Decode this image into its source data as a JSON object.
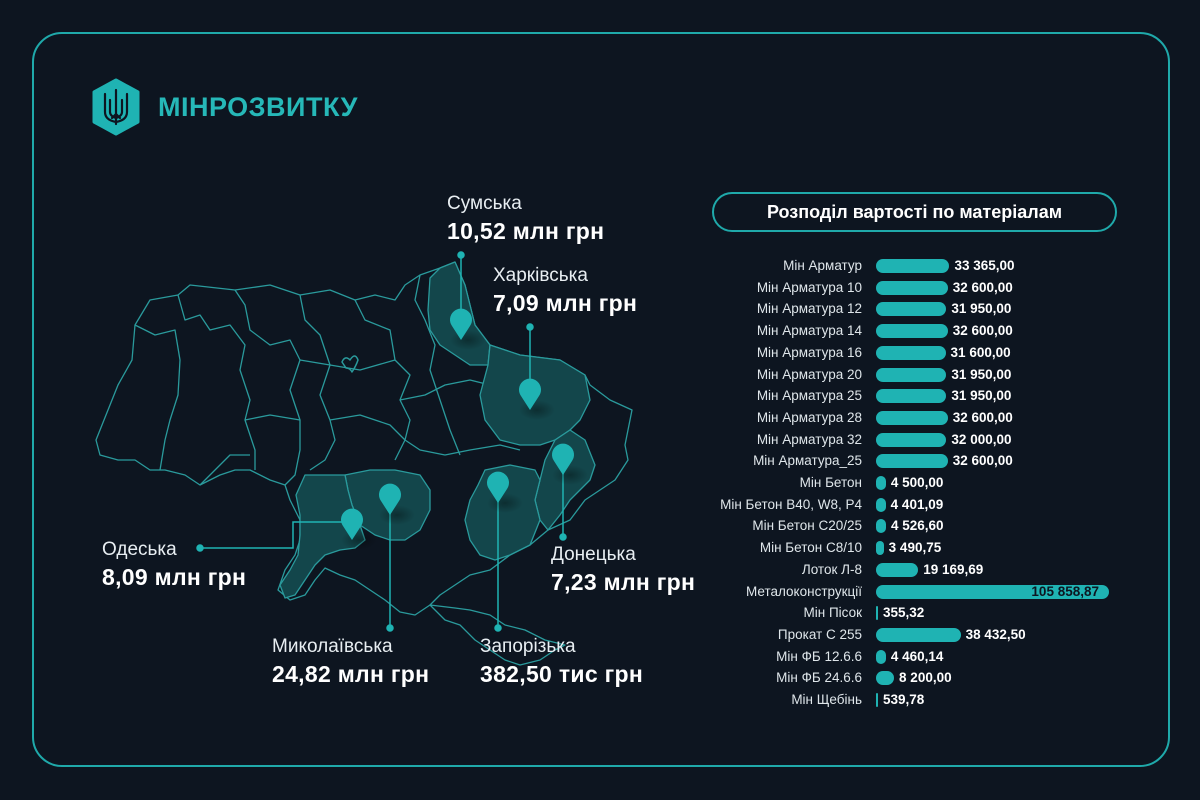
{
  "header": {
    "logo_text": "МІНРОЗВИТКУ",
    "logo_icon": "trident-emblem-icon"
  },
  "colors": {
    "background": "#0d1520",
    "accent": "#1fb3b3",
    "region_fill": "#13464b",
    "border_line": "#2a8f93",
    "text": "#ffffff"
  },
  "map": {
    "regions": [
      {
        "name": "Сумська",
        "value": "10,52 млн грн"
      },
      {
        "name": "Харківська",
        "value": "7,09 млн грн"
      },
      {
        "name": "Одеська",
        "value": "8,09 млн грн"
      },
      {
        "name": "Донецька",
        "value": "7,23 млн грн"
      },
      {
        "name": "Миколаївська",
        "value": "24,82 млн грн"
      },
      {
        "name": "Запорізька",
        "value": "382,50 тис грн"
      }
    ]
  },
  "chart_data": {
    "type": "bar",
    "orientation": "horizontal",
    "title": "Розподіл вартості по матеріалам",
    "xlabel": "",
    "ylabel": "",
    "grid": false,
    "categories": [
      "Мін Арматур",
      "Мін Арматура 10",
      "Мін Арматура 12",
      "Мін Арматура 14",
      "Мін Арматура 16",
      "Мін Арматура 20",
      "Мін Арматура 25",
      "Мін Арматура 28",
      "Мін Арматура 32",
      "Мін Арматура_25",
      "Мін Бетон",
      "Мін Бетон В40, W8, Р4",
      "Мін Бетон С20/25",
      "Мін Бетон С8/10",
      "Лоток Л-8",
      "Металоконструкції",
      "Мін Пісок",
      "Прокат С 255",
      "Мін ФБ 12.6.6",
      "Мін ФБ 24.6.6",
      "Мін Щебінь"
    ],
    "values": [
      33365.0,
      32600.0,
      31950.0,
      32600.0,
      31600.0,
      31950.0,
      31950.0,
      32600.0,
      32000.0,
      32600.0,
      4500.0,
      4401.09,
      4526.6,
      3490.75,
      19169.69,
      105858.87,
      355.32,
      38432.5,
      4460.14,
      8200.0,
      539.78
    ],
    "value_labels": [
      "33 365,00",
      "32 600,00",
      "31 950,00",
      "32 600,00",
      "31 600,00",
      "31 950,00",
      "31 950,00",
      "32 600,00",
      "32 000,00",
      "32 600,00",
      "4 500,00",
      "4 401,09",
      "4 526,60",
      "3 490,75",
      "19 169,69",
      "105 858,87",
      "355,32",
      "38 432,50",
      "4 460,14",
      "8 200,00",
      "539,78"
    ],
    "xlim": [
      0,
      105858.87
    ]
  }
}
